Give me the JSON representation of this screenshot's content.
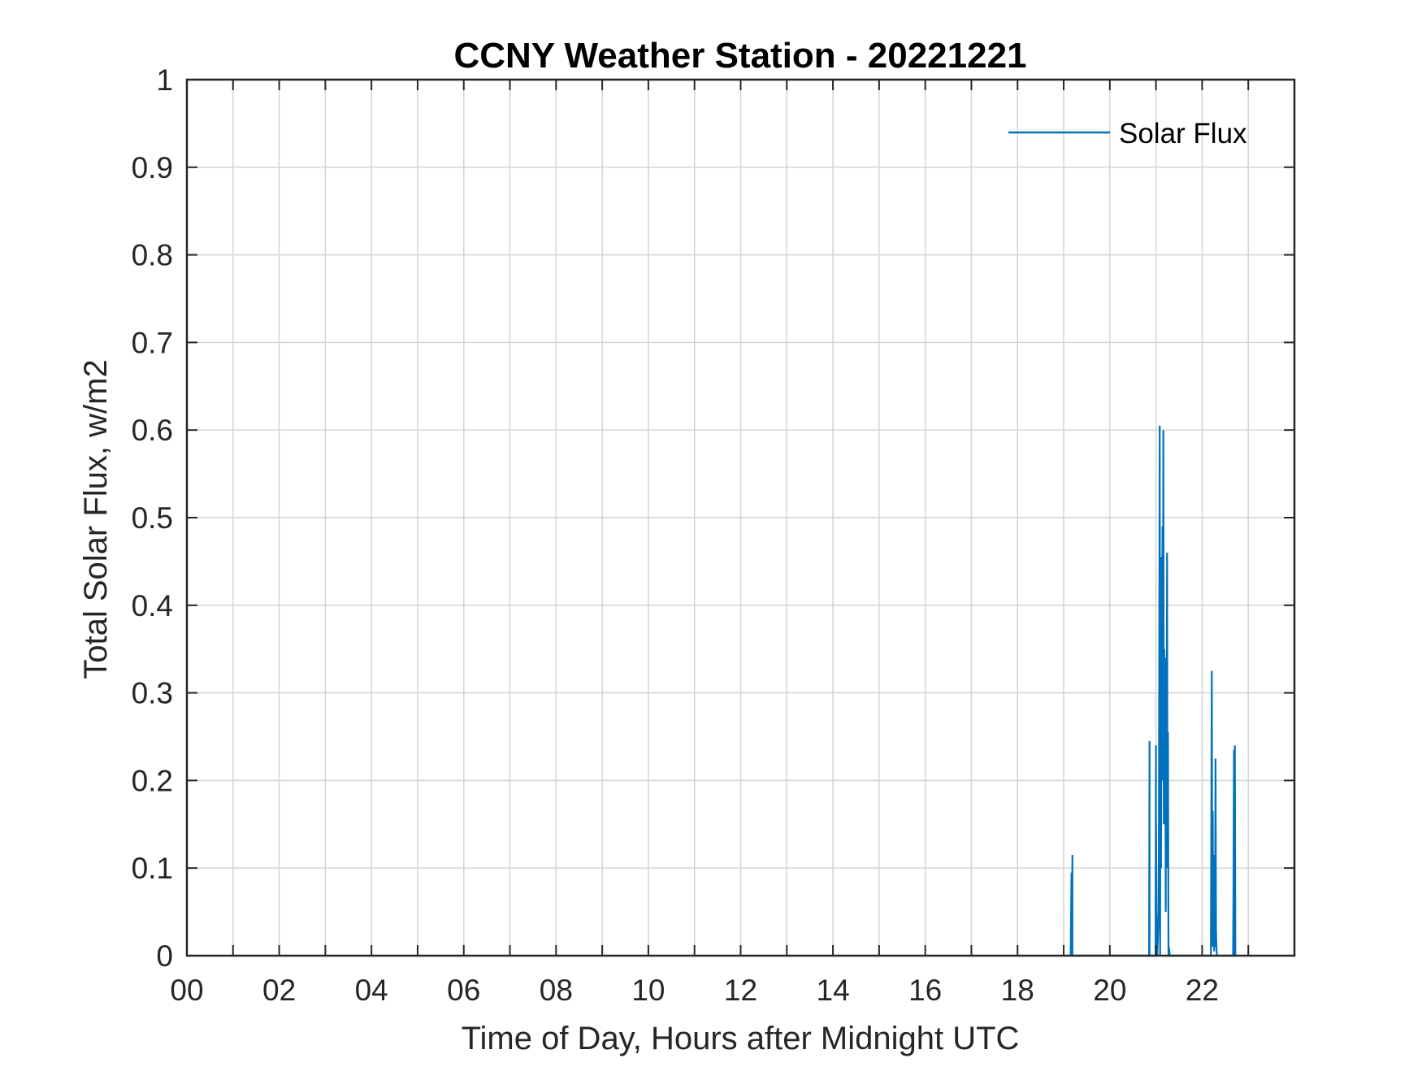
{
  "chart_data": {
    "type": "line",
    "title": "CCNY Weather Station - 20221221",
    "xlabel": "Time of Day, Hours after Midnight UTC",
    "ylabel": "Total Solar Flux, w/m2",
    "xlim": [
      0,
      24
    ],
    "ylim": [
      0,
      1
    ],
    "xticks": [
      0,
      1,
      2,
      3,
      4,
      5,
      6,
      7,
      8,
      9,
      10,
      11,
      12,
      13,
      14,
      15,
      16,
      17,
      18,
      19,
      20,
      21,
      22,
      23
    ],
    "xtick_labels": [
      "00",
      "",
      "02",
      "",
      "04",
      "",
      "06",
      "",
      "08",
      "",
      "10",
      "",
      "12",
      "",
      "14",
      "",
      "16",
      "",
      "18",
      "",
      "20",
      "",
      "22",
      ""
    ],
    "yticks": [
      0,
      0.1,
      0.2,
      0.3,
      0.4,
      0.5,
      0.6,
      0.7,
      0.8,
      0.9,
      1
    ],
    "ytick_labels": [
      "0",
      "0.1",
      "0.2",
      "0.3",
      "0.4",
      "0.5",
      "0.6",
      "0.7",
      "0.8",
      "0.9",
      "1"
    ],
    "grid": true,
    "legend_position": "top-right",
    "series": [
      {
        "name": "Solar Flux",
        "color": "#0072BD",
        "x": [
          19.15,
          19.17,
          19.17,
          19.19,
          19.19,
          20.85,
          20.86,
          20.86,
          20.99,
          21.0,
          21.0,
          21.02,
          21.03,
          21.03,
          21.06,
          21.08,
          21.09,
          21.1,
          21.11,
          21.12,
          21.13,
          21.14,
          21.15,
          21.16,
          21.17,
          21.18,
          21.19,
          21.2,
          21.21,
          21.22,
          21.23,
          21.24,
          21.25,
          21.26,
          21.27,
          21.28,
          21.29,
          21.3,
          21.31,
          21.32,
          21.33,
          21.34,
          21.35,
          21.36,
          21.37,
          21.38,
          21.39,
          21.4,
          22.19,
          22.21,
          22.22,
          22.23,
          22.24,
          22.25,
          22.26,
          22.27,
          22.28,
          22.29,
          22.3,
          22.31,
          22.32,
          22.33,
          22.67,
          22.68,
          22.69,
          22.7,
          22.71,
          22.72
        ],
        "values": [
          0,
          0.095,
          0,
          0.115,
          0,
          0,
          0.245,
          0,
          0,
          0.24,
          0.16,
          0,
          0.01,
          0,
          0.05,
          0.605,
          0,
          0.345,
          0.1,
          0.455,
          0.2,
          0.49,
          0.3,
          0.6,
          0.15,
          0.35,
          0.25,
          0.34,
          0.05,
          0.315,
          0.26,
          0.46,
          0.1,
          0.255,
          0,
          0.01,
          0.005,
          0,
          0,
          0,
          0,
          0,
          0,
          0,
          0,
          0,
          0,
          0,
          0,
          0.325,
          0.01,
          0.165,
          0.02,
          0.11,
          0.005,
          0.115,
          0.01,
          0.225,
          0.03,
          0.01,
          0,
          0,
          0,
          0.075,
          0.235,
          0,
          0.24,
          0
        ]
      }
    ]
  }
}
